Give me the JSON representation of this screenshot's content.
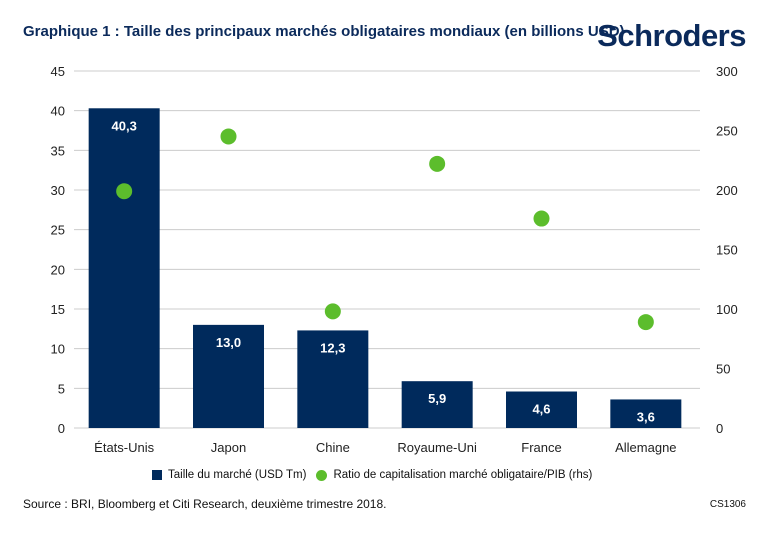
{
  "header": {
    "title": "Graphique 1 : Taille des principaux marchés obligataires mondiaux (en billions USD)",
    "logo": "Schroders"
  },
  "footer": {
    "source": "Source : BRI, Bloomberg et Citi Research, deuxième trimestre 2018.",
    "code": "CS1306"
  },
  "colors": {
    "bar": "#002a5c",
    "dot": "#5cbd2c",
    "title": "#0b2a5b",
    "grid": "#cccccc"
  },
  "chart_data": {
    "type": "bar",
    "title": "Graphique 1 : Taille des principaux marchés obligataires mondiaux (en billions USD)",
    "categories": [
      "États-Unis",
      "Japon",
      "Chine",
      "Royaume-Uni",
      "France",
      "Allemagne"
    ],
    "series": [
      {
        "name": "Taille du marché (USD Tm)",
        "type": "bar",
        "axis": "left",
        "values": [
          40.3,
          13.0,
          12.3,
          5.9,
          4.6,
          3.6
        ],
        "labels": [
          "40,3",
          "13,0",
          "12,3",
          "5,9",
          "4,6",
          "3,6"
        ]
      },
      {
        "name": "Ratio de capitalisation marché obligataire/PIB (rhs)",
        "type": "scatter",
        "axis": "right",
        "values": [
          199,
          245,
          98,
          222,
          176,
          89
        ]
      }
    ],
    "y_left": {
      "ylim": [
        0,
        45
      ],
      "ticks": [
        "0",
        "5",
        "10",
        "15",
        "20",
        "25",
        "30",
        "35",
        "40",
        "45"
      ]
    },
    "y_right": {
      "ylim": [
        0,
        300
      ],
      "ticks": [
        "0",
        "50",
        "100",
        "150",
        "200",
        "250",
        "300"
      ]
    },
    "grid": true,
    "legend_position": "bottom"
  }
}
